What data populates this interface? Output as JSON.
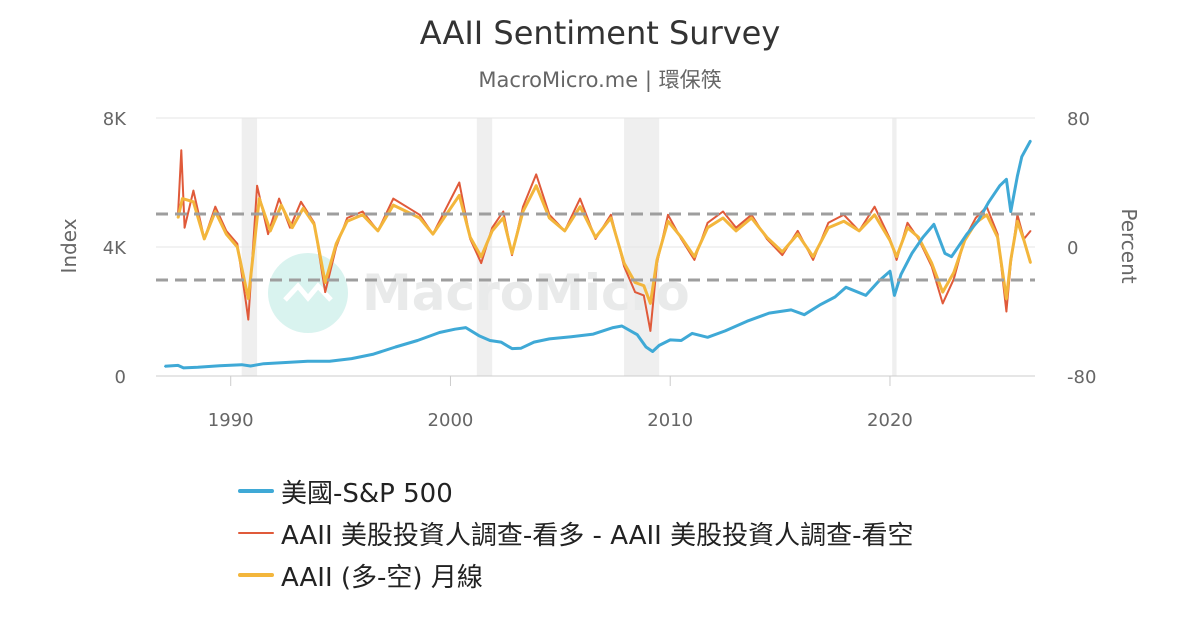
{
  "chart_data": {
    "type": "line",
    "title": "AAII Sentiment Survey",
    "subtitle": "MacroMicro.me | 環保筷",
    "watermark": "MacroMicro",
    "y_left": {
      "label": "Index",
      "ticks": [
        "0",
        "4K",
        "8K"
      ],
      "range": [
        0,
        8000
      ]
    },
    "y_right": {
      "label": "Percent",
      "ticks": [
        "-80",
        "0",
        "80"
      ],
      "range": [
        -80,
        80
      ]
    },
    "x_axis": {
      "ticks": [
        "1990",
        "2000",
        "2010",
        "2020"
      ],
      "range": [
        1986.6,
        2026.6
      ]
    },
    "reference_lines": [
      {
        "axis": "right",
        "value": 20.5,
        "style": "dashed",
        "color": "#9e9e9e"
      },
      {
        "axis": "right",
        "value": -20.5,
        "style": "dashed",
        "color": "#9e9e9e"
      }
    ],
    "recessions": [
      {
        "start": 1990.5,
        "end": 1991.2
      },
      {
        "start": 2001.2,
        "end": 2001.9
      },
      {
        "start": 2007.9,
        "end": 2009.5
      },
      {
        "start": 2020.1,
        "end": 2020.3
      }
    ],
    "series": [
      {
        "name": "美國-S&P 500",
        "axis": "left",
        "color": "#3fa9d6",
        "x": [
          1987.0,
          1987.6,
          1987.85,
          1988.5,
          1989.5,
          1990.5,
          1990.9,
          1991.5,
          1992.5,
          1993.5,
          1994.5,
          1995.5,
          1996.5,
          1997.5,
          1998.5,
          1999.5,
          2000.2,
          2000.7,
          2001.3,
          2001.8,
          2002.3,
          2002.8,
          2003.2,
          2003.8,
          2004.5,
          2005.5,
          2006.5,
          2007.4,
          2007.8,
          2008.5,
          2008.9,
          2009.2,
          2009.5,
          2010.0,
          2010.5,
          2011.0,
          2011.7,
          2012.5,
          2013.5,
          2014.5,
          2015.5,
          2016.1,
          2016.8,
          2017.5,
          2018.0,
          2018.9,
          2019.5,
          2020.0,
          2020.2,
          2020.5,
          2021.0,
          2021.5,
          2022.0,
          2022.5,
          2022.8,
          2023.5,
          2024.0,
          2024.5,
          2025.0,
          2025.3,
          2025.5,
          2025.8,
          2026.0,
          2026.4
        ],
        "values": [
          300,
          330,
          250,
          270,
          320,
          350,
          310,
          380,
          420,
          460,
          460,
          540,
          680,
          900,
          1100,
          1350,
          1450,
          1500,
          1250,
          1100,
          1050,
          850,
          860,
          1050,
          1150,
          1220,
          1300,
          1500,
          1550,
          1280,
          900,
          760,
          950,
          1120,
          1100,
          1320,
          1200,
          1400,
          1700,
          1950,
          2050,
          1900,
          2200,
          2450,
          2750,
          2500,
          2950,
          3250,
          2500,
          3150,
          3800,
          4300,
          4700,
          3800,
          3700,
          4400,
          4800,
          5400,
          5900,
          6100,
          5100,
          6200,
          6800,
          7300
        ]
      },
      {
        "name": "AAII 美股投資人調查-看多 - AAII 美股投資人調查-看空",
        "axis": "right",
        "color": "#e05a3a",
        "x": [
          1987.6,
          1987.75,
          1987.9,
          1988.3,
          1988.8,
          1989.3,
          1989.8,
          1990.3,
          1990.7,
          1990.8,
          1991.2,
          1991.7,
          1992.2,
          1992.7,
          1993.2,
          1993.8,
          1994.3,
          1994.8,
          1995.3,
          1996.0,
          1996.7,
          1997.4,
          1998.0,
          1998.6,
          1999.2,
          1999.8,
          2000.4,
          2000.9,
          2001.4,
          2001.9,
          2002.4,
          2002.8,
          2003.3,
          2003.9,
          2004.5,
          2005.2,
          2005.9,
          2006.6,
          2007.3,
          2007.9,
          2008.4,
          2008.8,
          2009.1,
          2009.4,
          2009.9,
          2010.5,
          2011.1,
          2011.7,
          2012.4,
          2013.0,
          2013.7,
          2014.4,
          2015.1,
          2015.8,
          2016.5,
          2017.2,
          2017.9,
          2018.6,
          2019.3,
          2020.0,
          2020.3,
          2020.8,
          2021.3,
          2021.9,
          2022.4,
          2022.9,
          2023.4,
          2023.9,
          2024.4,
          2024.9,
          2025.3,
          2025.5,
          2025.8,
          2026.1,
          2026.4
        ],
        "values": [
          20,
          60,
          12,
          35,
          5,
          25,
          10,
          2,
          -35,
          -45,
          38,
          8,
          30,
          12,
          28,
          15,
          -28,
          0,
          18,
          22,
          10,
          30,
          25,
          20,
          8,
          24,
          40,
          5,
          -10,
          12,
          22,
          -5,
          25,
          45,
          20,
          10,
          30,
          5,
          20,
          -12,
          -28,
          -30,
          -52,
          -10,
          20,
          5,
          -8,
          15,
          22,
          12,
          20,
          5,
          -5,
          10,
          -8,
          15,
          20,
          10,
          25,
          5,
          -8,
          15,
          5,
          -12,
          -35,
          -20,
          5,
          18,
          25,
          8,
          -40,
          -10,
          20,
          5,
          10
        ]
      },
      {
        "name": "AAII (多-空) 月線",
        "axis": "right",
        "color": "#f3b63c",
        "x": [
          1987.6,
          1987.8,
          1988.3,
          1988.8,
          1989.3,
          1989.8,
          1990.3,
          1990.8,
          1991.3,
          1991.8,
          1992.3,
          1992.8,
          1993.3,
          1993.8,
          1994.3,
          1994.8,
          1995.3,
          1996.0,
          1996.7,
          1997.4,
          1998.0,
          1998.6,
          1999.2,
          1999.8,
          2000.4,
          2000.9,
          2001.4,
          2001.9,
          2002.4,
          2002.8,
          2003.3,
          2003.9,
          2004.5,
          2005.2,
          2005.9,
          2006.6,
          2007.3,
          2007.9,
          2008.4,
          2008.8,
          2009.1,
          2009.4,
          2009.9,
          2010.5,
          2011.1,
          2011.7,
          2012.4,
          2013.0,
          2013.7,
          2014.4,
          2015.1,
          2015.8,
          2016.5,
          2017.2,
          2017.9,
          2018.6,
          2019.3,
          2020.0,
          2020.3,
          2020.8,
          2021.3,
          2021.9,
          2022.4,
          2022.9,
          2023.4,
          2023.9,
          2024.4,
          2024.9,
          2025.3,
          2025.5,
          2025.8,
          2026.1,
          2026.4
        ],
        "values": [
          18,
          30,
          28,
          5,
          22,
          8,
          0,
          -32,
          30,
          10,
          26,
          12,
          24,
          14,
          -22,
          2,
          16,
          20,
          10,
          26,
          22,
          18,
          8,
          20,
          32,
          6,
          -6,
          10,
          18,
          -4,
          22,
          38,
          18,
          10,
          25,
          6,
          18,
          -10,
          -22,
          -24,
          -35,
          -8,
          16,
          6,
          -6,
          12,
          18,
          10,
          18,
          6,
          -3,
          8,
          -6,
          12,
          16,
          10,
          20,
          4,
          -6,
          12,
          6,
          -10,
          -28,
          -16,
          4,
          15,
          20,
          6,
          -32,
          -8,
          16,
          4,
          -10
        ]
      }
    ]
  }
}
